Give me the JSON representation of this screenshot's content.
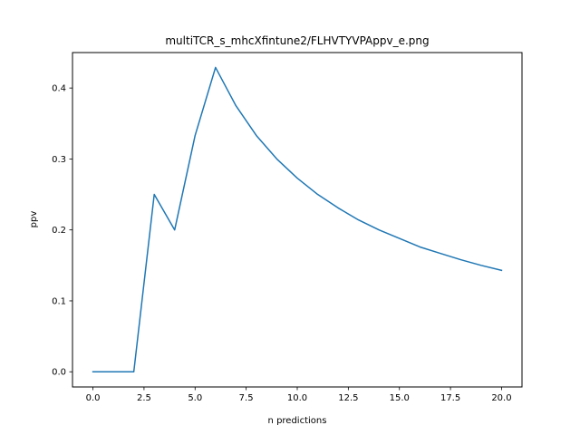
{
  "chart_data": {
    "type": "line",
    "title": "multiTCR_s_mhcXfintune2/FLHVTYVPAppv_e.png",
    "xlabel": "n predictions",
    "ylabel": "ppv",
    "xlim": [
      -1.0,
      21.0
    ],
    "ylim": [
      -0.0214,
      0.45
    ],
    "x_ticks": [
      0.0,
      2.5,
      5.0,
      7.5,
      10.0,
      12.5,
      15.0,
      17.5,
      20.0
    ],
    "x_tick_labels": [
      "0.0",
      "2.5",
      "5.0",
      "7.5",
      "10.0",
      "12.5",
      "15.0",
      "17.5",
      "20.0"
    ],
    "y_ticks": [
      0.0,
      0.1,
      0.2,
      0.3,
      0.4
    ],
    "y_tick_labels": [
      "0.0",
      "0.1",
      "0.2",
      "0.3",
      "0.4"
    ],
    "grid": false,
    "legend": "none",
    "series": [
      {
        "color": "#1f77b4",
        "x": [
          0,
          1,
          2,
          3,
          4,
          5,
          6,
          7,
          8,
          9,
          10,
          11,
          12,
          13,
          14,
          15,
          16,
          17,
          18,
          19,
          20
        ],
        "y": [
          0.0,
          0.0,
          0.0,
          0.25,
          0.2,
          0.333,
          0.429,
          0.375,
          0.333,
          0.3,
          0.273,
          0.25,
          0.231,
          0.214,
          0.2,
          0.188,
          0.176,
          0.167,
          0.158,
          0.15,
          0.143
        ]
      }
    ]
  }
}
